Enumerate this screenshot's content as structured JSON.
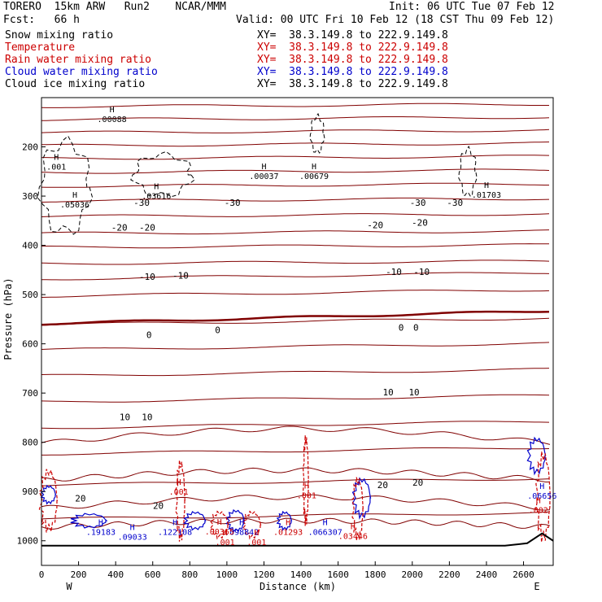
{
  "header": {
    "left1": "TORERO  15km ARW   Run2    NCAR/MMM",
    "left2": "Fcst:   66 h",
    "init": "Init: 06 UTC Tue 07 Feb 12",
    "valid": "Valid: 00 UTC Fri 10 Feb 12 (18 CST Thu 09 Feb 12)",
    "fields": [
      {
        "name": "Snow mixing ratio",
        "color": "#000000",
        "xy": "XY=  38.3.149.8 to 222.9.149.8",
        "xy_color": "#000000"
      },
      {
        "name": "Temperature",
        "color": "#cc0000",
        "xy": "XY=  38.3.149.8 to 222.9.149.8",
        "xy_color": "#cc0000"
      },
      {
        "name": "Rain water mixing ratio",
        "color": "#cc0000",
        "xy": "XY=  38.3.149.8 to 222.9.149.8",
        "xy_color": "#cc0000"
      },
      {
        "name": "Cloud water mixing ratio",
        "color": "#0000cc",
        "xy": "XY=  38.3.149.8 to 222.9.149.8",
        "xy_color": "#0000cc"
      },
      {
        "name": "Cloud ice mixing ratio",
        "color": "#000000",
        "xy": "XY=  38.3.149.8 to 222.9.149.8",
        "xy_color": "#000000"
      }
    ]
  },
  "chart_data": {
    "type": "contour",
    "xlabel": "Distance (km)",
    "ylabel": "Pressure (hPa)",
    "xlim": [
      0,
      2760
    ],
    "ylim": [
      1050,
      100
    ],
    "x_ticks": [
      0,
      200,
      400,
      600,
      800,
      1000,
      1200,
      1400,
      1600,
      1800,
      2000,
      2200,
      2400,
      2600
    ],
    "y_ticks": [
      200,
      300,
      400,
      500,
      600,
      700,
      800,
      900,
      1000
    ],
    "endpoints": {
      "left": "W",
      "right": "E"
    },
    "colors": {
      "temperature": "#800000",
      "zero_isotherm": "#800000",
      "cloud_water": "#0000cc",
      "rain": "#cc0000",
      "snow": "#000000",
      "terrain": "#000000"
    },
    "temperature_contour_interval": 5,
    "temperature_labels": [
      {
        "text": "-30",
        "x": 540,
        "p": 320
      },
      {
        "text": "-30",
        "x": 1030,
        "p": 320
      },
      {
        "text": "-30",
        "x": 2030,
        "p": 320
      },
      {
        "text": "-30",
        "x": 2230,
        "p": 320
      },
      {
        "text": "-20",
        "x": 420,
        "p": 370
      },
      {
        "text": "-20",
        "x": 570,
        "p": 370
      },
      {
        "text": "-20",
        "x": 1800,
        "p": 365
      },
      {
        "text": "-20",
        "x": 2040,
        "p": 360
      },
      {
        "text": "-10",
        "x": 570,
        "p": 470
      },
      {
        "text": "-10",
        "x": 750,
        "p": 468
      },
      {
        "text": "-10",
        "x": 1900,
        "p": 460
      },
      {
        "text": "-10",
        "x": 2050,
        "p": 460
      },
      {
        "text": "0",
        "x": 580,
        "p": 588
      },
      {
        "text": "0",
        "x": 950,
        "p": 578
      },
      {
        "text": "0",
        "x": 1940,
        "p": 573
      },
      {
        "text": "0",
        "x": 2020,
        "p": 573
      },
      {
        "text": "10",
        "x": 450,
        "p": 755
      },
      {
        "text": "10",
        "x": 570,
        "p": 755
      },
      {
        "text": "10",
        "x": 1870,
        "p": 705
      },
      {
        "text": "10",
        "x": 2010,
        "p": 705
      },
      {
        "text": "20",
        "x": 210,
        "p": 920
      },
      {
        "text": "20",
        "x": 630,
        "p": 935
      },
      {
        "text": "20",
        "x": 1840,
        "p": 893
      },
      {
        "text": "20",
        "x": 2030,
        "p": 888
      }
    ],
    "maxima": [
      {
        "field": "snow",
        "label": ".001",
        "x": 80,
        "p": 243
      },
      {
        "field": "snow",
        "label": ".05036",
        "x": 180,
        "p": 320
      },
      {
        "field": "snow",
        "label": ".03616",
        "x": 620,
        "p": 302
      },
      {
        "field": "snow",
        "label": ".00037",
        "x": 1200,
        "p": 262
      },
      {
        "field": "snow",
        "label": ".00679",
        "x": 1470,
        "p": 262
      },
      {
        "field": "snow",
        "label": ".01703",
        "x": 2400,
        "p": 300
      },
      {
        "field": "snow",
        "label": ".00088",
        "x": 380,
        "p": 146
      },
      {
        "field": "cloud_water",
        "label": ".19183",
        "x": 320,
        "p": 985
      },
      {
        "field": "cloud_water",
        "label": ".09033",
        "x": 490,
        "p": 995
      },
      {
        "field": "cloud_water",
        "label": ".122108",
        "x": 720,
        "p": 985
      },
      {
        "field": "cloud_water",
        "label": ".098842",
        "x": 1080,
        "p": 985
      },
      {
        "field": "cloud_water",
        "label": ".066307",
        "x": 1530,
        "p": 985
      },
      {
        "field": "cloud_water",
        "label": ".06656",
        "x": 2700,
        "p": 911
      },
      {
        "field": "rain",
        "label": ".001",
        "x": 740,
        "p": 903
      },
      {
        "field": "rain",
        "label": ".001",
        "x": 1430,
        "p": 910
      },
      {
        "field": "rain",
        "label": ".00365",
        "x": 960,
        "p": 984
      },
      {
        "field": "rain",
        "label": ".001",
        "x": 990,
        "p": 1005
      },
      {
        "field": "rain",
        "label": ".001",
        "x": 1160,
        "p": 1005
      },
      {
        "field": "rain",
        "label": ".01293",
        "x": 1330,
        "p": 985
      },
      {
        "field": "rain",
        "label": ".03446",
        "x": 1680,
        "p": 993
      },
      {
        "field": "rain",
        "label": ".002",
        "x": 2680,
        "p": 940
      }
    ]
  }
}
